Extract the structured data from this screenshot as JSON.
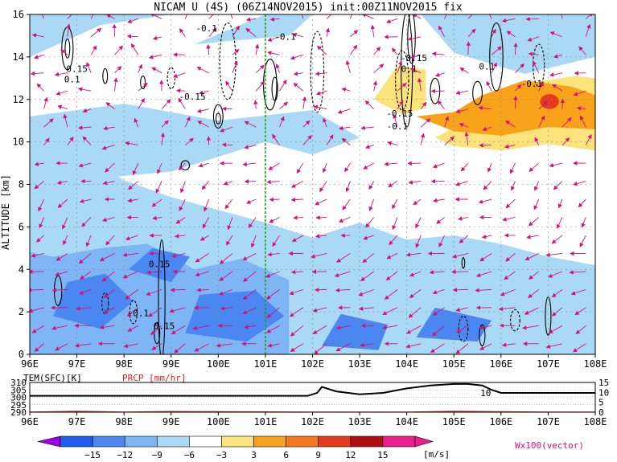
{
  "title": "NICAM U (4S) (06Z14NOV2015) init:00Z11NOV2015 fix",
  "chart_data": [
    {
      "type": "heatmap",
      "title": "NICAM U (4S) (06Z14NOV2015) init:00Z11NOV2015 fix",
      "xlabel": "",
      "ylabel": "ALTITUDE [km]",
      "xlim": [
        96,
        108
      ],
      "ylim": [
        0,
        16
      ],
      "x_ticks": [
        "96E",
        "97E",
        "98E",
        "99E",
        "100E",
        "101E",
        "102E",
        "103E",
        "104E",
        "105E",
        "106E",
        "107E",
        "108E"
      ],
      "y_ticks": [
        "0",
        "2",
        "4",
        "6",
        "8",
        "10",
        "12",
        "14",
        "16"
      ],
      "reference_line_x": 101,
      "grid": true,
      "contour_labels": [
        {
          "text": "0.15",
          "x": 97.0,
          "y": 13.3
        },
        {
          "text": "0.1",
          "x": 96.9,
          "y": 12.8
        },
        {
          "text": "-0.1",
          "x": 99.75,
          "y": 15.2
        },
        {
          "text": "-0.15",
          "x": 99.45,
          "y": 12.0
        },
        {
          "text": "-0.1",
          "x": 101.42,
          "y": 14.8
        },
        {
          "text": "-0.15",
          "x": 104.15,
          "y": 13.8
        },
        {
          "text": "0.1",
          "x": 104.05,
          "y": 13.3
        },
        {
          "text": "-0.15",
          "x": 103.85,
          "y": 11.2
        },
        {
          "text": "-0.1",
          "x": 103.8,
          "y": 10.6
        },
        {
          "text": "0.1",
          "x": 105.7,
          "y": 13.4
        },
        {
          "text": "-0.1",
          "x": 106.65,
          "y": 12.6
        },
        {
          "text": "0.15",
          "x": 98.75,
          "y": 4.1
        },
        {
          "text": "-0.1",
          "x": 98.3,
          "y": 1.8
        },
        {
          "text": "0.15",
          "x": 98.85,
          "y": 1.2
        }
      ],
      "colorbar": {
        "levels": [
          -15,
          -12,
          -9,
          -6,
          -3,
          3,
          6,
          9,
          12,
          15
        ],
        "colors": [
          "#9b00e6",
          "#1f5ef0",
          "#4a87f0",
          "#7eb6f5",
          "#a9d9f5",
          "#ffffff",
          "#fbe27a",
          "#f7a21a",
          "#f5781e",
          "#e63a1e",
          "#b00e10",
          "#eb1e8c"
        ],
        "unit": "[m/s]"
      },
      "vector_label": "Wx100(vector)",
      "vector_color": "#d60f7a",
      "contour_color": "#000000"
    },
    {
      "type": "line",
      "series": [
        {
          "name": "TEM(SFC)[K]",
          "color": "#000000",
          "x": [
            96,
            97,
            98,
            99,
            100,
            101,
            101.9,
            102.1,
            102.2,
            102.5,
            103,
            103.5,
            104,
            104.5,
            105,
            105.3,
            105.6,
            105.8,
            106,
            108
          ],
          "values": [
            301,
            301,
            301,
            301,
            301,
            301,
            301,
            303,
            307,
            304,
            302,
            303,
            306,
            308,
            309,
            309,
            308,
            305,
            303,
            303
          ]
        },
        {
          "name": "PRCP [mm/hr]",
          "color": "#e8221e",
          "x": [
            96,
            97,
            98,
            99,
            100,
            101,
            102,
            103,
            104,
            105,
            106,
            107,
            108
          ],
          "values": [
            0,
            0.4,
            0,
            0.3,
            0.2,
            0.1,
            0,
            0,
            0,
            0.4,
            0.2,
            0,
            0
          ]
        }
      ],
      "legend": [
        "TEM(SFC)[K]",
        "PRCP [mm/hr]"
      ],
      "xlim": [
        96,
        108
      ],
      "ylim_left": [
        290,
        310
      ],
      "ylim_right": [
        0,
        15
      ],
      "left_ticks": [
        "310",
        "305",
        "300",
        "295",
        "290"
      ],
      "right_ticks": [
        "15",
        "10",
        "5",
        "0"
      ],
      "x_ticks": [
        "96E",
        "97E",
        "98E",
        "99E",
        "100E",
        "101E",
        "102E",
        "103E",
        "104E",
        "105E",
        "106E",
        "107E",
        "108E"
      ],
      "annotation": {
        "text": "10",
        "x": 105.8,
        "y": 303
      }
    }
  ]
}
